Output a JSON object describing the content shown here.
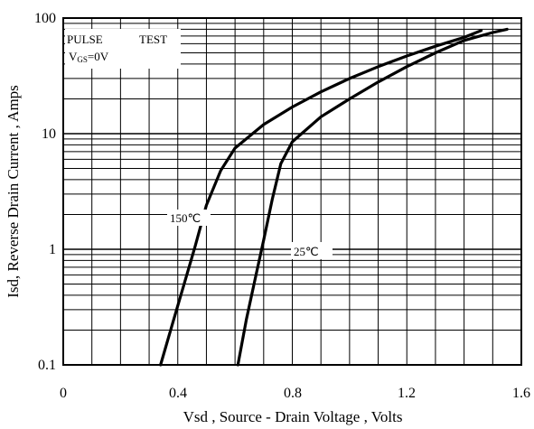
{
  "chart_data": {
    "type": "line",
    "xlabel": "Vsd , Source - Drain Voltage , Volts",
    "ylabel": "Isd, Reverse Drain Current , Amps",
    "xlim": [
      0,
      1.6
    ],
    "ylim": [
      0.1,
      100
    ],
    "y_scale": "log",
    "x_ticks": [
      "0",
      "0.4",
      "0.8",
      "1.2",
      "1.6"
    ],
    "y_ticks": [
      "0.1",
      "1",
      "10",
      "100"
    ],
    "grid": true,
    "annotations": {
      "pulse": "PULSE",
      "test": "TEST",
      "vgs_prefix": "V",
      "vgs_sub": "GS",
      "vgs_suffix": "=0V"
    },
    "series": [
      {
        "name": "150℃",
        "x": [
          0.34,
          0.38,
          0.42,
          0.46,
          0.5,
          0.55,
          0.6,
          0.7,
          0.8,
          0.9,
          1.0,
          1.1,
          1.2,
          1.3,
          1.4,
          1.46
        ],
        "y": [
          0.1,
          0.22,
          0.48,
          1.05,
          2.4,
          4.8,
          7.5,
          12.0,
          17.0,
          23.0,
          30.0,
          38.0,
          47.0,
          57.0,
          68.0,
          78.0
        ]
      },
      {
        "name": "25℃",
        "x": [
          0.61,
          0.64,
          0.67,
          0.7,
          0.73,
          0.76,
          0.8,
          0.9,
          1.0,
          1.1,
          1.2,
          1.3,
          1.4,
          1.5,
          1.55
        ],
        "y": [
          0.1,
          0.25,
          0.55,
          1.2,
          2.7,
          5.5,
          8.5,
          14.0,
          20.0,
          28.0,
          38.0,
          50.0,
          64.0,
          75.0,
          80.0
        ]
      }
    ]
  }
}
